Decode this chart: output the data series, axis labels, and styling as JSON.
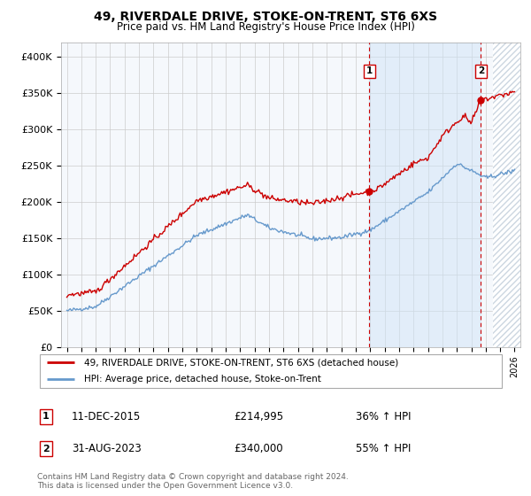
{
  "title": "49, RIVERDALE DRIVE, STOKE-ON-TRENT, ST6 6XS",
  "subtitle": "Price paid vs. HM Land Registry's House Price Index (HPI)",
  "ylabel_ticks": [
    "£0",
    "£50K",
    "£100K",
    "£150K",
    "£200K",
    "£250K",
    "£300K",
    "£350K",
    "£400K"
  ],
  "ytick_values": [
    0,
    50000,
    100000,
    150000,
    200000,
    250000,
    300000,
    350000,
    400000
  ],
  "ylim": [
    0,
    420000
  ],
  "xlim_start": 1994.6,
  "xlim_end": 2026.4,
  "red_line_color": "#cc0000",
  "blue_line_color": "#6699cc",
  "blue_fill_color": "#d0e4f7",
  "grid_color": "#cccccc",
  "bg_color": "#f5f8fc",
  "hatch_color": "#c8d0d8",
  "sale1_date": 2015.95,
  "sale1_price": 214995,
  "sale1_label": "1",
  "sale2_date": 2023.67,
  "sale2_price": 340000,
  "sale2_label": "2",
  "legend_entry1": "49, RIVERDALE DRIVE, STOKE-ON-TRENT, ST6 6XS (detached house)",
  "legend_entry2": "HPI: Average price, detached house, Stoke-on-Trent",
  "annotation1_date": "11-DEC-2015",
  "annotation1_price": "£214,995",
  "annotation1_hpi": "36% ↑ HPI",
  "annotation2_date": "31-AUG-2023",
  "annotation2_price": "£340,000",
  "annotation2_hpi": "55% ↑ HPI",
  "footer": "Contains HM Land Registry data © Crown copyright and database right 2024.\nThis data is licensed under the Open Government Licence v3.0."
}
